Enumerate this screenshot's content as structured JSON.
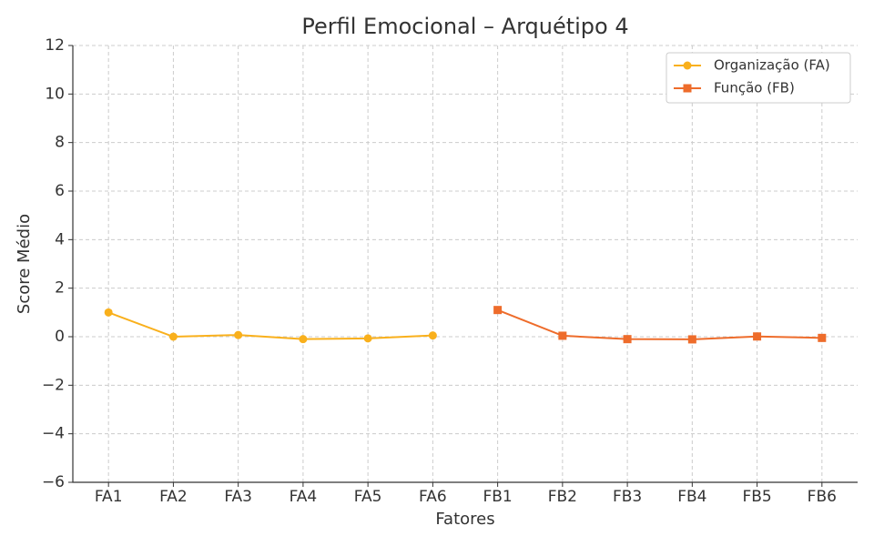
{
  "chart_data": {
    "type": "line",
    "title": "Perfil Emocional – Arquétipo 4",
    "xlabel": "Fatores",
    "ylabel": "Score Médio",
    "categories": [
      "FA1",
      "FA2",
      "FA3",
      "FA4",
      "FA5",
      "FA6",
      "FB1",
      "FB2",
      "FB3",
      "FB4",
      "FB5",
      "FB6"
    ],
    "series": [
      {
        "name": "Organização (FA)",
        "color": "#f9b01c",
        "marker": "circle",
        "values": [
          1.0,
          0.0,
          0.07,
          -0.1,
          -0.07,
          0.05,
          null,
          null,
          null,
          null,
          null,
          null
        ]
      },
      {
        "name": "Função (FB)",
        "color": "#ee6c2b",
        "marker": "square",
        "values": [
          null,
          null,
          null,
          null,
          null,
          null,
          1.1,
          0.04,
          -0.1,
          -0.11,
          0.01,
          -0.05
        ]
      }
    ],
    "ylim": [
      -6,
      12
    ],
    "yticks": [
      {
        "value": -6,
        "label": "−6"
      },
      {
        "value": -4,
        "label": "−4"
      },
      {
        "value": -2,
        "label": "−2"
      },
      0,
      2,
      4,
      6,
      8,
      10,
      12
    ],
    "grid": true,
    "legend": "upper right"
  }
}
